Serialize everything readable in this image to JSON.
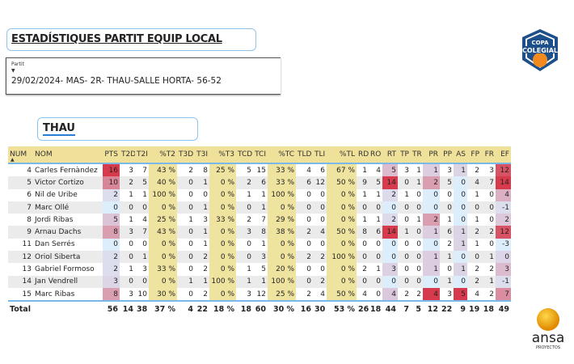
{
  "header": {
    "title": "ESTADÍSTIQUES PARTIT EQUIP LOCAL"
  },
  "slicer": {
    "label": "Partit",
    "value": "29/02/2024- MAS- 2R- THAU-SALLE HORTA- 56-52"
  },
  "team": {
    "name": "THAU"
  },
  "logos": {
    "top": "COPA COLEGIAL",
    "bottom": "ansa PROYECTOS"
  },
  "colors": {
    "header_bg": "#efe09a",
    "pct_bg": "#efe3a0",
    "heat_low": "#dcedfb",
    "heat_mid": "#dcc6da",
    "heat_high": "#d63a4c"
  },
  "table": {
    "columns": [
      "NUM",
      "NOM",
      "PTS",
      "T2D",
      "T2I",
      "%T2",
      "T3D",
      "T3I",
      "%T3",
      "TCD",
      "TCI",
      "%TC",
      "TLD",
      "TLI",
      "%TL",
      "RD",
      "RO",
      "RT",
      "TP",
      "TR",
      "PR",
      "PP",
      "AS",
      "FP",
      "FR",
      "EF"
    ],
    "heat_columns": [
      "PTS",
      "RT",
      "PR",
      "AS",
      "EF"
    ],
    "pct_columns": [
      "%T2",
      "%T3",
      "%TC",
      "%TL"
    ],
    "rows": [
      [
        "4",
        "Carles Fernàndez",
        "16",
        "3",
        "7",
        "43 %",
        "2",
        "8",
        "25 %",
        "5",
        "15",
        "33 %",
        "4",
        "6",
        "67 %",
        "1",
        "4",
        "5",
        "3",
        "1",
        "1",
        "3",
        "1",
        "2",
        "3",
        "12"
      ],
      [
        "5",
        "Victor Cortizo",
        "10",
        "2",
        "5",
        "40 %",
        "0",
        "1",
        "0 %",
        "2",
        "6",
        "33 %",
        "6",
        "12",
        "50 %",
        "9",
        "5",
        "14",
        "0",
        "1",
        "2",
        "5",
        "0",
        "4",
        "7",
        "14"
      ],
      [
        "6",
        "Nil de Uribe",
        "2",
        "1",
        "1",
        "100 %",
        "0",
        "0",
        "0 %",
        "1",
        "1",
        "100 %",
        "0",
        "0",
        "0 %",
        "1",
        "1",
        "2",
        "1",
        "0",
        "0",
        "0",
        "0",
        "1",
        "0",
        "4"
      ],
      [
        "7",
        "Marc Ollé",
        "0",
        "0",
        "0",
        "0 %",
        "0",
        "1",
        "0 %",
        "0",
        "1",
        "0 %",
        "0",
        "0",
        "0 %",
        "0",
        "0",
        "0",
        "0",
        "0",
        "0",
        "0",
        "0",
        "0",
        "0",
        "-1"
      ],
      [
        "8",
        "Jordi Ribas",
        "5",
        "1",
        "4",
        "25 %",
        "1",
        "3",
        "33 %",
        "2",
        "7",
        "29 %",
        "0",
        "0",
        "0 %",
        "1",
        "1",
        "2",
        "0",
        "1",
        "2",
        "1",
        "0",
        "1",
        "0",
        "2"
      ],
      [
        "9",
        "Arnau Dachs",
        "8",
        "3",
        "7",
        "43 %",
        "0",
        "1",
        "0 %",
        "3",
        "8",
        "38 %",
        "2",
        "4",
        "50 %",
        "8",
        "6",
        "14",
        "1",
        "0",
        "1",
        "6",
        "1",
        "2",
        "2",
        "12"
      ],
      [
        "11",
        "Dan Serrés",
        "0",
        "0",
        "0",
        "0 %",
        "0",
        "1",
        "0 %",
        "0",
        "1",
        "0 %",
        "0",
        "0",
        "0 %",
        "0",
        "0",
        "0",
        "0",
        "0",
        "0",
        "2",
        "1",
        "1",
        "0",
        "-3"
      ],
      [
        "12",
        "Oriol Siberta",
        "2",
        "0",
        "1",
        "0 %",
        "0",
        "2",
        "0 %",
        "0",
        "3",
        "0 %",
        "2",
        "2",
        "100 %",
        "0",
        "0",
        "0",
        "0",
        "0",
        "1",
        "1",
        "0",
        "0",
        "1",
        "0"
      ],
      [
        "13",
        "Gabriel Formoso",
        "2",
        "1",
        "3",
        "33 %",
        "0",
        "2",
        "0 %",
        "1",
        "5",
        "20 %",
        "0",
        "0",
        "0 %",
        "2",
        "1",
        "3",
        "0",
        "0",
        "1",
        "0",
        "1",
        "2",
        "2",
        "3"
      ],
      [
        "14",
        "Jan Vendrell",
        "3",
        "0",
        "0",
        "0 %",
        "1",
        "1",
        "100 %",
        "1",
        "1",
        "100 %",
        "0",
        "2",
        "0 %",
        "0",
        "0",
        "0",
        "0",
        "0",
        "0",
        "1",
        "0",
        "2",
        "1",
        "-1"
      ],
      [
        "15",
        "Marc Ribas",
        "8",
        "3",
        "10",
        "30 %",
        "0",
        "2",
        "0 %",
        "3",
        "12",
        "25 %",
        "2",
        "4",
        "50 %",
        "4",
        "0",
        "4",
        "2",
        "2",
        "4",
        "3",
        "5",
        "4",
        "2",
        "7"
      ]
    ],
    "total": [
      "Total",
      "",
      "56",
      "14",
      "38",
      "37 %",
      "4",
      "22",
      "18 %",
      "18",
      "60",
      "30 %",
      "16",
      "30",
      "53 %",
      "26",
      "18",
      "44",
      "7",
      "5",
      "12",
      "22",
      "9",
      "19",
      "18",
      "49"
    ]
  }
}
